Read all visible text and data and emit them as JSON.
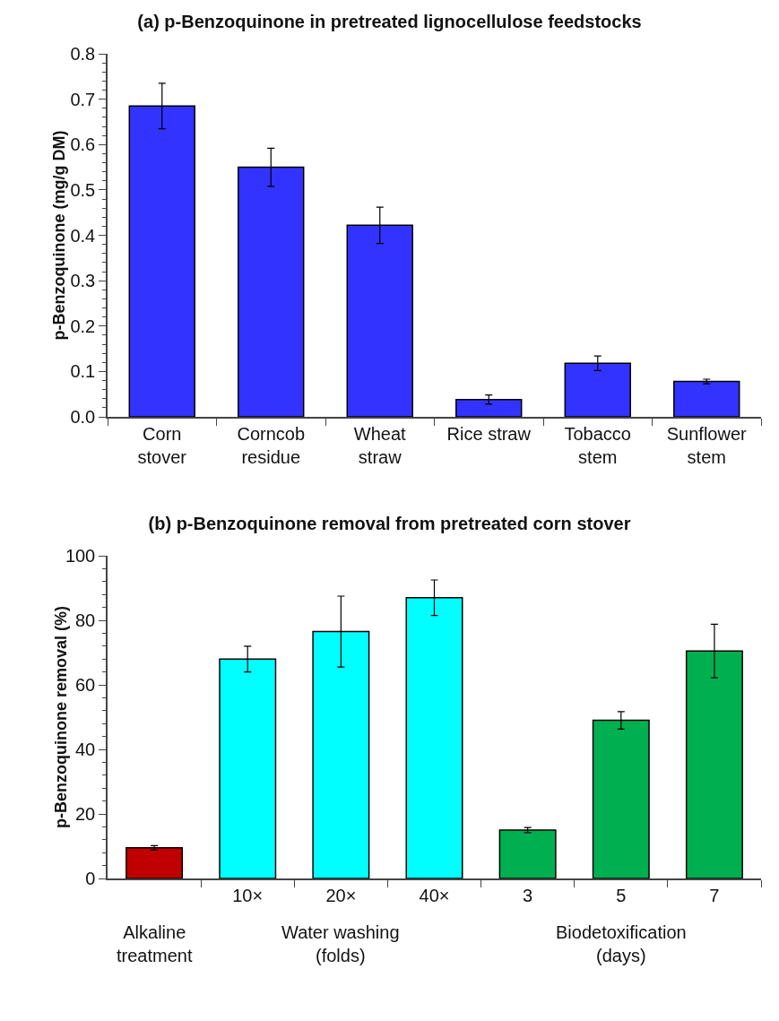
{
  "chart_data": [
    {
      "type": "bar",
      "title": "(a) p-Benzoquinone in pretreated lignocellulose feedstocks",
      "ylabel": "p-Benzoquinone (mg/g DM)",
      "categories": [
        "Corn\nstover",
        "Corncob\nresidue",
        "Wheat\nstraw",
        "Rice straw",
        "Tobacco\nstem",
        "Sunflower\nstem"
      ],
      "values": [
        0.685,
        0.55,
        0.422,
        0.038,
        0.118,
        0.078
      ],
      "errors": [
        0.05,
        0.042,
        0.04,
        0.01,
        0.016,
        0.005
      ],
      "colors": [
        "#3333ff",
        "#3333ff",
        "#3333ff",
        "#3333ff",
        "#3333ff",
        "#3333ff"
      ],
      "ylim": [
        0,
        0.8
      ],
      "yticks": [
        {
          "value": 0,
          "label": "0.0"
        },
        0.1,
        0.2,
        0.3,
        0.4,
        0.5,
        0.6,
        0.7,
        0.8
      ],
      "grid": false,
      "legend": false
    },
    {
      "type": "bar",
      "title": "(b) p-Benzoquinone removal from pretreated corn stover",
      "ylabel": "p-Benzoquinone removal (%)",
      "categories": [
        null,
        "10×",
        "20×",
        "40×",
        "3",
        "5",
        "7"
      ],
      "values": [
        9.5,
        68,
        76.5,
        87,
        15,
        49,
        70.5
      ],
      "errors": [
        0.7,
        4,
        11,
        5.5,
        0.8,
        2.7,
        8.3
      ],
      "colors": [
        "#c00000",
        "#00ffff",
        "#00ffff",
        "#00ffff",
        "#00b050",
        "#00b050",
        "#00b050"
      ],
      "ylim": [
        0,
        100
      ],
      "yticks": [
        0,
        20,
        40,
        60,
        80,
        100
      ],
      "grid": false,
      "legend": false,
      "annotations": [
        "Alkaline\ntreatment",
        "Water washing\n(folds)",
        "Biodetoxification\n(days)"
      ]
    }
  ]
}
